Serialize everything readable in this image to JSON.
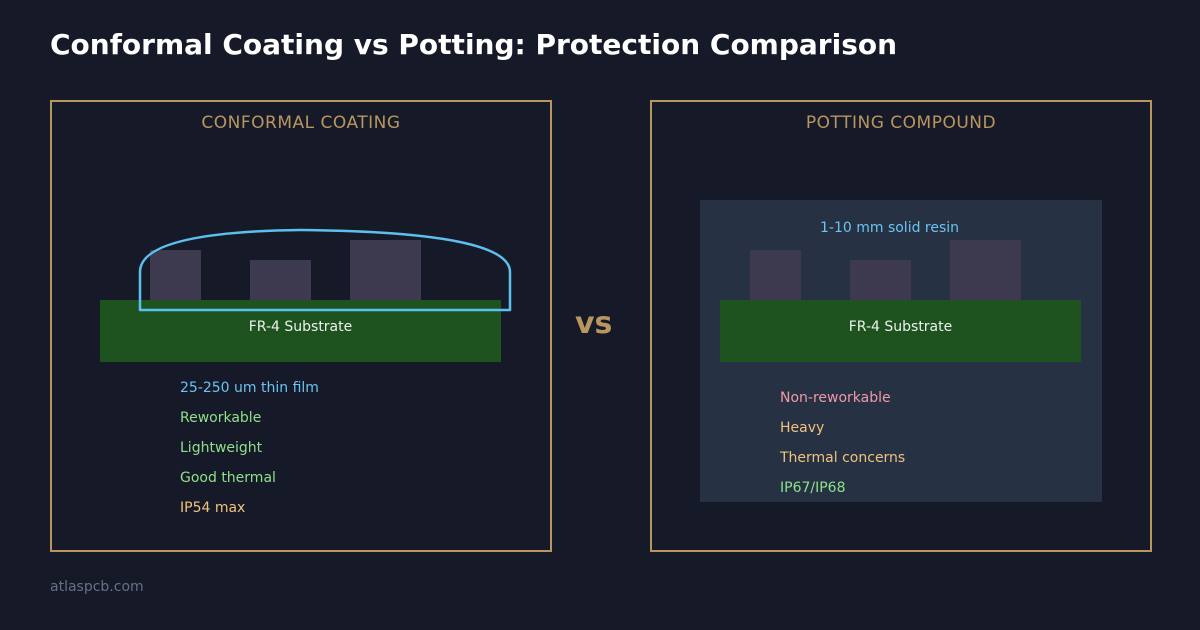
{
  "title": "Conformal Coating vs Potting: Protection Comparison",
  "vs_label": "vs",
  "footer": "atlaspcb.com",
  "colors": {
    "background": "#161a28",
    "border_gold": "#b9965f",
    "substrate_green": "#1e5320",
    "component": "#3d3a50",
    "resin_fill": "#263144",
    "coating_outline": "#5dbfee",
    "info_blue": "#6cc3f2",
    "positive_green": "#8fe08b",
    "warning_orange": "#f0c27e",
    "negative_pink": "#f09aa4"
  },
  "conformal": {
    "heading": "CONFORMAL COATING",
    "substrate_label": "FR-4 Substrate",
    "features": [
      {
        "text": "25-250 um thin film",
        "tone": "info"
      },
      {
        "text": "Reworkable",
        "tone": "positive"
      },
      {
        "text": "Lightweight",
        "tone": "positive"
      },
      {
        "text": "Good thermal",
        "tone": "positive"
      },
      {
        "text": "IP54 max",
        "tone": "warning"
      }
    ]
  },
  "potting": {
    "heading": "POTTING COMPOUND",
    "resin_label": "1-10 mm solid resin",
    "substrate_label": "FR-4 Substrate",
    "features": [
      {
        "text": "Non-reworkable",
        "tone": "negative"
      },
      {
        "text": "Heavy",
        "tone": "warning"
      },
      {
        "text": "Thermal concerns",
        "tone": "warning"
      },
      {
        "text": "IP67/IP68",
        "tone": "positive"
      }
    ]
  }
}
